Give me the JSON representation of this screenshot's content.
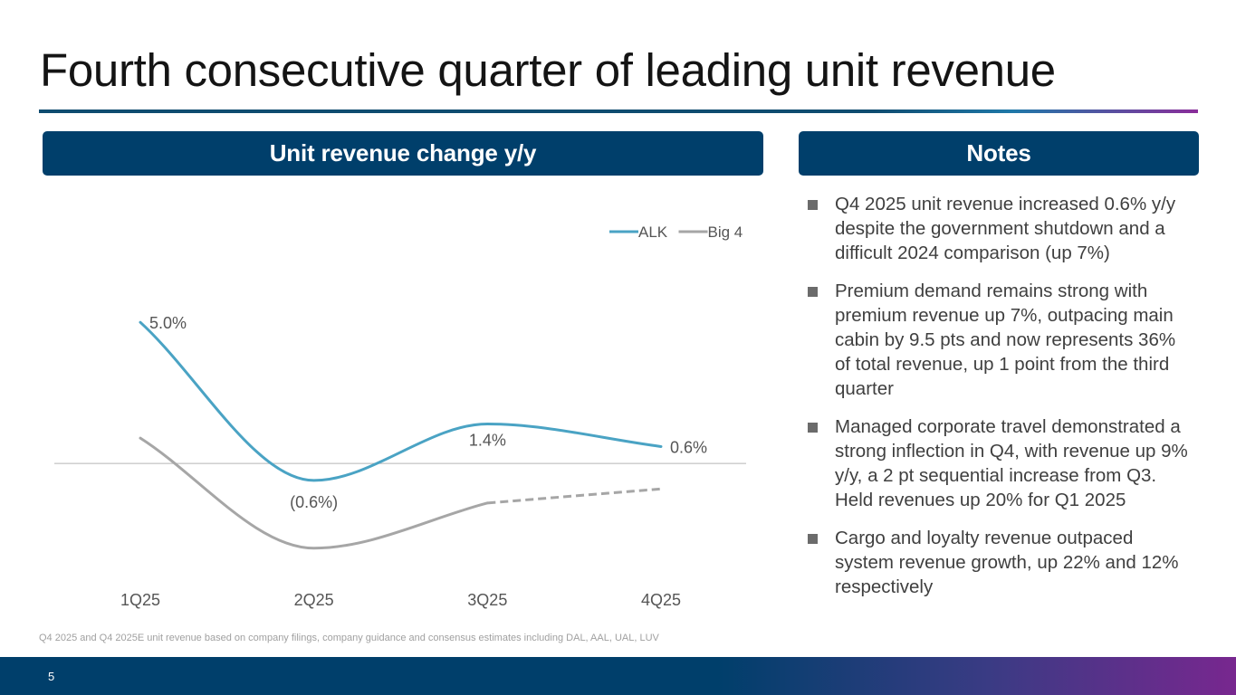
{
  "slide": {
    "title": "Fourth consecutive quarter of leading unit revenue",
    "page_number": "5",
    "accent_color": "#003f6b",
    "gradient_end_color": "#78278f"
  },
  "chart_panel": {
    "header": "Unit revenue change y/y",
    "footnote": "Q4 2025 and Q4 2025E unit revenue based on company filings, company guidance and consensus estimates including DAL, AAL, UAL, LUV"
  },
  "notes_panel": {
    "header": "Notes",
    "items": [
      "Q4 2025 unit revenue increased 0.6% y/y despite the government shutdown and a difficult 2024 comparison (up 7%)",
      "Premium demand remains strong with premium revenue up 7%, outpacing main cabin by 9.5 pts and now represents 36% of total revenue, up 1 point from the third quarter",
      "Managed corporate travel demonstrated a strong inflection in Q4, with revenue up 9% y/y, a 2 pt sequential increase from Q3.  Held revenues up 20% for Q1 2025",
      "Cargo and loyalty revenue outpaced system revenue growth, up 22% and 12% respectively"
    ]
  },
  "chart_data": {
    "type": "line",
    "title": "Unit revenue change y/y",
    "categories": [
      "1Q25",
      "2Q25",
      "3Q25",
      "4Q25"
    ],
    "series": [
      {
        "name": "ALK",
        "values": [
          5.0,
          -0.6,
          1.4,
          0.6
        ],
        "labels": [
          "5.0%",
          "(0.6%)",
          "1.4%",
          "0.6%"
        ],
        "color": "#4aa3c4",
        "style": "solid"
      },
      {
        "name": "Big 4",
        "values": [
          0.9,
          -3.0,
          -1.4,
          -0.9
        ],
        "labels": [],
        "color": "#a6a6a6",
        "style": "solid",
        "estimated_from_index": 2
      }
    ],
    "ylim": [
      -3.2,
      6.0
    ],
    "legend": "top-right",
    "zero_line": true,
    "grid": false,
    "xlabel": "",
    "ylabel": ""
  }
}
